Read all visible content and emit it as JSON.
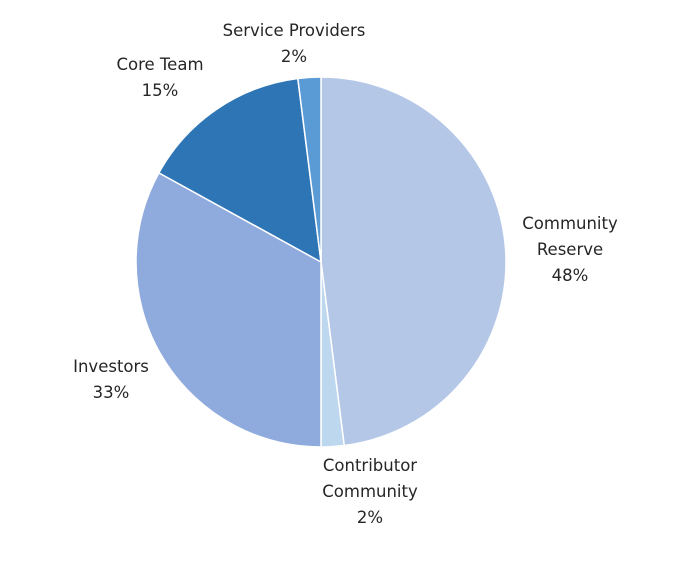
{
  "chart_data": {
    "type": "pie",
    "title": "",
    "legend": "none",
    "slices": [
      {
        "name": "Community Reserve",
        "label_lines": [
          "Community",
          "Reserve"
        ],
        "percent_label": "48%",
        "value": 48,
        "color": "#b4c7e7"
      },
      {
        "name": "Contributor Community",
        "label_lines": [
          "Contributor",
          "Community"
        ],
        "percent_label": "2%",
        "value": 2,
        "color": "#bdd7ee"
      },
      {
        "name": "Investors",
        "label_lines": [
          "Investors"
        ],
        "percent_label": "33%",
        "value": 33,
        "color": "#8faadc"
      },
      {
        "name": "Core Team",
        "label_lines": [
          "Core Team"
        ],
        "percent_label": "15%",
        "value": 15,
        "color": "#2e75b6"
      },
      {
        "name": "Service Providers",
        "label_lines": [
          "Service Providers"
        ],
        "percent_label": "2%",
        "value": 2,
        "color": "#5b9bd5"
      }
    ]
  }
}
